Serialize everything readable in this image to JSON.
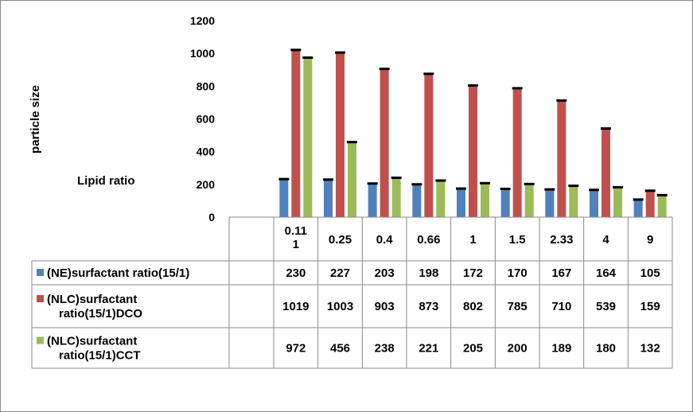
{
  "chart_data": {
    "type": "bar",
    "ylabel": "particle size",
    "xlabel": "Lipid ratio",
    "ylim": [
      0,
      1200
    ],
    "yticks": [
      "0",
      "200",
      "400",
      "600",
      "800",
      "1000",
      "1200"
    ],
    "categories": [
      "0.11 1",
      "0.25",
      "0.4",
      "0.66",
      "1",
      "1.5",
      "2.33",
      "4",
      "9"
    ],
    "series": [
      {
        "name": "(NE)surfactant ratio(15/1)",
        "name_lines": [
          "(NE)surfactant ratio(15/1)"
        ],
        "color": "#4f81bd",
        "values": [
          230,
          227,
          203,
          198,
          172,
          170,
          167,
          164,
          105
        ],
        "labels": [
          "230",
          "227",
          "203",
          "198",
          "172",
          "170",
          "167",
          "164",
          "105"
        ]
      },
      {
        "name": "(NLC)surfactant ratio(15/1)DCO",
        "name_lines": [
          "(NLC)surfactant",
          "ratio(15/1)DCO"
        ],
        "color": "#c0504d",
        "values": [
          1019,
          1003,
          903,
          873,
          802,
          785,
          710,
          539,
          159
        ],
        "labels": [
          "1019",
          "1003",
          "903",
          "873",
          "802",
          "785",
          "710",
          "539",
          "159"
        ]
      },
      {
        "name": "(NLC)surfactant ratio(15/1)CCT",
        "name_lines": [
          "(NLC)surfactant",
          "ratio(15/1)CCT"
        ],
        "color": "#9bbb59",
        "values": [
          972,
          456,
          238,
          221,
          205,
          200,
          189,
          180,
          132
        ],
        "labels": [
          "972",
          "456",
          "238",
          "221",
          "205",
          "200",
          "189",
          "180",
          "132"
        ]
      }
    ],
    "error_bars": true,
    "legend": "data-table"
  }
}
